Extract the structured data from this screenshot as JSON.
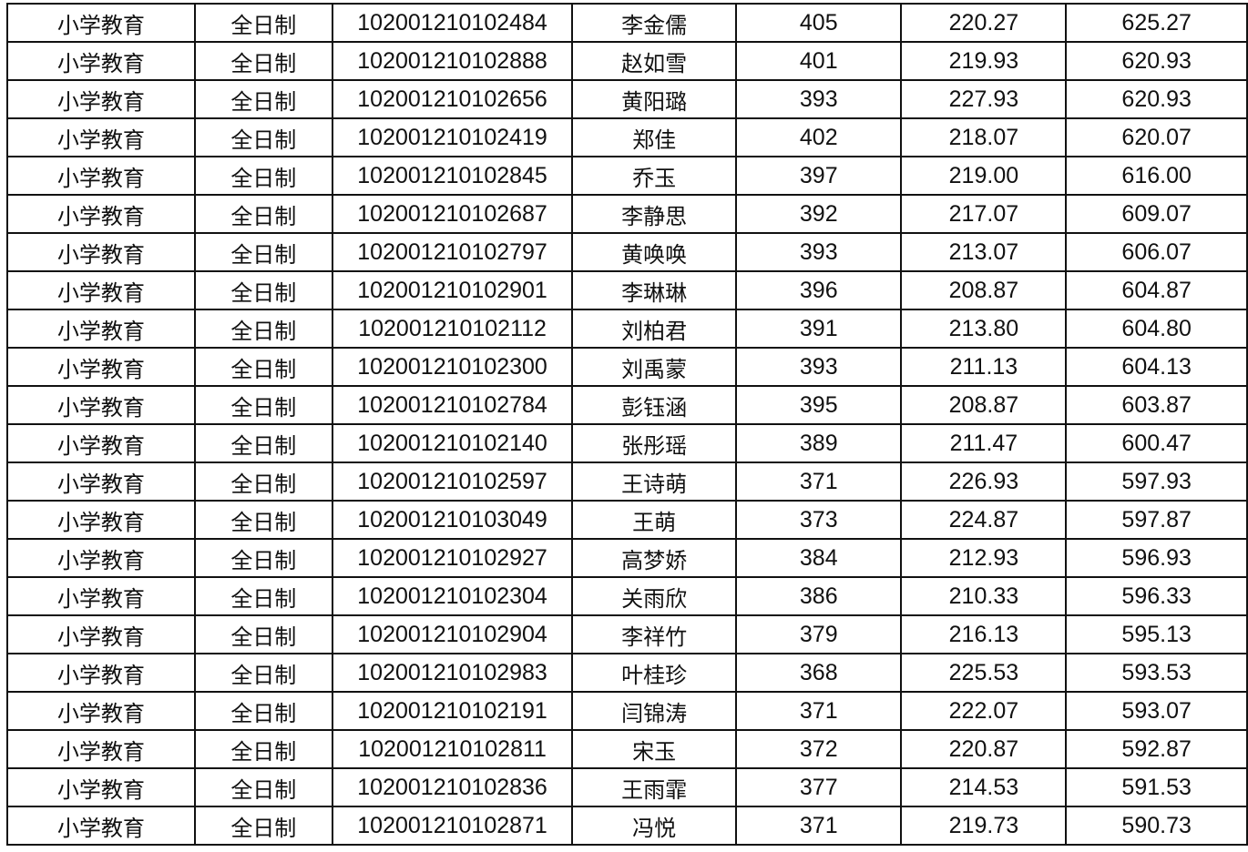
{
  "rows": [
    [
      "小学教育",
      "全日制",
      "102001210102484",
      "李金儒",
      "405",
      "220.27",
      "625.27"
    ],
    [
      "小学教育",
      "全日制",
      "102001210102888",
      "赵如雪",
      "401",
      "219.93",
      "620.93"
    ],
    [
      "小学教育",
      "全日制",
      "102001210102656",
      "黄阳璐",
      "393",
      "227.93",
      "620.93"
    ],
    [
      "小学教育",
      "全日制",
      "102001210102419",
      "郑佳",
      "402",
      "218.07",
      "620.07"
    ],
    [
      "小学教育",
      "全日制",
      "102001210102845",
      "乔玉",
      "397",
      "219.00",
      "616.00"
    ],
    [
      "小学教育",
      "全日制",
      "102001210102687",
      "李静思",
      "392",
      "217.07",
      "609.07"
    ],
    [
      "小学教育",
      "全日制",
      "102001210102797",
      "黄唤唤",
      "393",
      "213.07",
      "606.07"
    ],
    [
      "小学教育",
      "全日制",
      "102001210102901",
      "李琳琳",
      "396",
      "208.87",
      "604.87"
    ],
    [
      "小学教育",
      "全日制",
      "102001210102112",
      "刘柏君",
      "391",
      "213.80",
      "604.80"
    ],
    [
      "小学教育",
      "全日制",
      "102001210102300",
      "刘禹蒙",
      "393",
      "211.13",
      "604.13"
    ],
    [
      "小学教育",
      "全日制",
      "102001210102784",
      "彭钰涵",
      "395",
      "208.87",
      "603.87"
    ],
    [
      "小学教育",
      "全日制",
      "102001210102140",
      "张彤瑶",
      "389",
      "211.47",
      "600.47"
    ],
    [
      "小学教育",
      "全日制",
      "102001210102597",
      "王诗萌",
      "371",
      "226.93",
      "597.93"
    ],
    [
      "小学教育",
      "全日制",
      "102001210103049",
      "王萌",
      "373",
      "224.87",
      "597.87"
    ],
    [
      "小学教育",
      "全日制",
      "102001210102927",
      "高梦娇",
      "384",
      "212.93",
      "596.93"
    ],
    [
      "小学教育",
      "全日制",
      "102001210102304",
      "关雨欣",
      "386",
      "210.33",
      "596.33"
    ],
    [
      "小学教育",
      "全日制",
      "102001210102904",
      "李祥竹",
      "379",
      "216.13",
      "595.13"
    ],
    [
      "小学教育",
      "全日制",
      "102001210102983",
      "叶桂珍",
      "368",
      "225.53",
      "593.53"
    ],
    [
      "小学教育",
      "全日制",
      "102001210102191",
      "闫锦涛",
      "371",
      "222.07",
      "593.07"
    ],
    [
      "小学教育",
      "全日制",
      "102001210102811",
      "宋玉",
      "372",
      "220.87",
      "592.87"
    ],
    [
      "小学教育",
      "全日制",
      "102001210102836",
      "王雨霏",
      "377",
      "214.53",
      "591.53"
    ],
    [
      "小学教育",
      "全日制",
      "102001210102871",
      "冯悦",
      "371",
      "219.73",
      "590.73"
    ]
  ]
}
